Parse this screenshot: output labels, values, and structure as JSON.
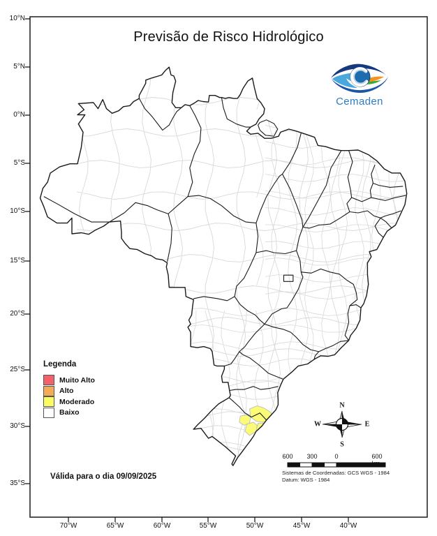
{
  "title": "Previsão de Risco Hidrológico",
  "logo": {
    "text": "Cemaden"
  },
  "legend": {
    "title": "Legenda",
    "items": [
      {
        "label": "Muito Alto",
        "color": "#f3626b"
      },
      {
        "label": "Alto",
        "color": "#f2ab59"
      },
      {
        "label": "Moderado",
        "color": "#fbfb64"
      },
      {
        "label": "Baixo",
        "color": "#ffffff"
      }
    ]
  },
  "validity": "Válida para o dia 09/09/2025",
  "compass": {
    "n": "N",
    "s": "S",
    "e": "E",
    "w": "W"
  },
  "scalebar": {
    "labels": [
      "600",
      "300",
      "0",
      "600 km"
    ]
  },
  "crs": {
    "line1": "Sistemas de Coordenadas: GCS WGS - 1984",
    "line2": "Datum: WGS - 1984"
  },
  "axes": {
    "lat": [
      "10°N",
      "5°N",
      "0°N",
      "5°S",
      "10°S",
      "15°S",
      "20°S",
      "25°S",
      "30°S",
      "35°S"
    ],
    "lon": [
      "70°W",
      "65°W",
      "60°W",
      "55°W",
      "50°W",
      "45°W",
      "40°W"
    ]
  },
  "map": {
    "country": "Brasil",
    "risk_region_color": "#fbfb78",
    "state_border_color": "#1a1a1a",
    "municipal_border_color": "#d8d8d8",
    "outline_color": "#1a1a1a"
  }
}
